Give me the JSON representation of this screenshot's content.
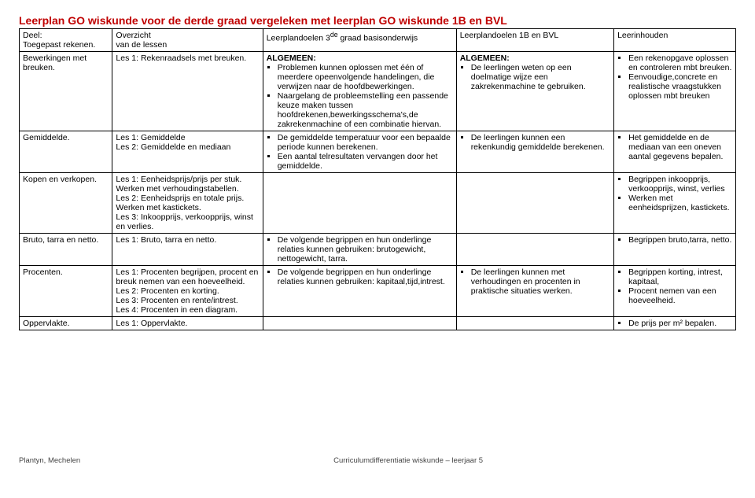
{
  "title": "Leerplan GO wiskunde voor de derde graad vergeleken met leerplan GO wiskunde 1B en BVL",
  "header": {
    "c1a": "Deel:",
    "c1b": "Toegepast rekenen.",
    "c2a": "Overzicht",
    "c2b": "van de lessen",
    "c3a": "Leerplandoelen 3",
    "c3sup": "de",
    "c3b": " graad basisonderwijs",
    "c4": "Leerplandoelen 1B en BVL",
    "c5": "Leerinhouden"
  },
  "rows": [
    {
      "c1": "Bewerkingen met breuken.",
      "c2": "Les 1: Rekenraadsels met breuken.",
      "c3head": "ALGEMEEN:",
      "c3": [
        "Problemen kunnen oplossen met één of meerdere opeenvolgende handelingen, die verwijzen naar de hoofdbewerkingen.",
        "Naargelang de probleemstelling een passende keuze maken tussen hoofdrekenen,bewerkingsschema's,de zakrekenmachine of een combinatie hiervan."
      ],
      "c4head": "ALGEMEEN:",
      "c4": [
        "De leerlingen weten op een doelmatige wijze een zakrekenmachine te gebruiken."
      ],
      "c5": [
        "Een rekenopgave oplossen en controleren mbt breuken.",
        "Eenvoudige,concrete en realistische vraagstukken oplossen mbt breuken"
      ]
    },
    {
      "c1": "Gemiddelde.",
      "c2": "Les 1: Gemiddelde\nLes 2: Gemiddelde en mediaan",
      "c3": [
        "De gemiddelde temperatuur voor een bepaalde periode kunnen berekenen.",
        "Een aantal telresultaten vervangen door het gemiddelde."
      ],
      "c4": [
        "De leerlingen kunnen een rekenkundig gemiddelde berekenen."
      ],
      "c5": [
        "Het gemiddelde en de mediaan van een oneven aantal gegevens bepalen."
      ]
    },
    {
      "c1": "Kopen en verkopen.",
      "c2": "Les 1: Eenheidsprijs/prijs per stuk. Werken met verhoudingstabellen.\nLes 2: Eenheidsprijs en totale prijs. Werken met kastickets.\nLes 3: Inkoopprijs, verkoopprijs, winst en verlies.",
      "c3": [],
      "c4": [],
      "c5": [
        "Begrippen inkoopprijs, verkoopprijs, winst, verlies",
        "Werken met eenheidsprijzen, kastickets."
      ]
    },
    {
      "c1": "Bruto, tarra en netto.",
      "c2": "Les 1: Bruto, tarra en netto.",
      "c3": [
        "De volgende begrippen en hun onderlinge relaties kunnen gebruiken: brutogewicht, nettogewicht, tarra."
      ],
      "c4": [],
      "c5": [
        "Begrippen bruto,tarra, netto."
      ]
    },
    {
      "c1": "Procenten.",
      "c2": "Les 1: Procenten begrijpen, procent en breuk nemen van een hoeveelheid.\nLes 2: Procenten en korting.\nLes 3: Procenten en rente/intrest.\nLes 4: Procenten in een diagram.",
      "c3": [
        "De volgende begrippen en hun onderlinge relaties kunnen gebruiken: kapitaal,tijd,intrest."
      ],
      "c4": [
        "De leerlingen kunnen met verhoudingen en procenten in praktische situaties werken."
      ],
      "c5": [
        "Begrippen korting, intrest, kapitaal,",
        "Procent nemen van een hoeveelheid."
      ]
    },
    {
      "c1": "Oppervlakte.",
      "c2": "Les 1: Oppervlakte.",
      "c3": [],
      "c4": [],
      "c5": [
        "De prijs per m² bepalen."
      ]
    }
  ],
  "footer": {
    "left": "Plantyn, Mechelen",
    "center": "Curriculumdifferentiatie wiskunde – leerjaar 5"
  },
  "colWidths": [
    "13%",
    "21%",
    "27%",
    "22%",
    "17%"
  ]
}
